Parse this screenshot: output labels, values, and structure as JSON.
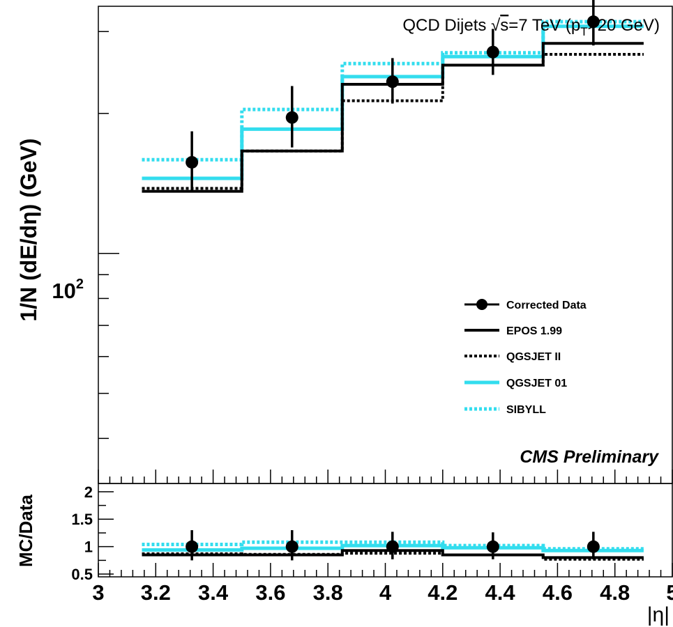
{
  "chart_data": [
    {
      "type": "step",
      "panel": "main",
      "title": "QCD Dijets √s=7 TeV (p_T>20 GeV)",
      "title_parts": {
        "prefix": "QCD Dijets ",
        "root": "√",
        "s": "s",
        "mid": "=7 TeV (p",
        "sub": "T",
        "suffix": ">20 GeV)"
      },
      "annotation": "CMS Preliminary",
      "xlabel": "|η|",
      "ylabel": "1/N (dE/dη) (GeV)",
      "yscale": "log",
      "xlim": [
        3.0,
        5.0
      ],
      "ylim": [
        32,
        340
      ],
      "y_tick_labels": [
        {
          "value": 100,
          "base": "10",
          "exp": "2"
        }
      ],
      "bin_edges": [
        3.152,
        3.5,
        3.85,
        4.2,
        4.55,
        4.9
      ],
      "series": [
        {
          "name": "Corrected Data",
          "kind": "points",
          "color": "#000000",
          "x": [
            3.326,
            3.675,
            4.025,
            4.375,
            4.725
          ],
          "y": [
            157,
            196,
            234,
            271,
            315
          ],
          "err_low": [
            21,
            27,
            24,
            29,
            35
          ],
          "err_high": [
            26,
            33,
            29,
            33,
            40
          ]
        },
        {
          "name": "EPOS 1.99",
          "kind": "step",
          "style": "solid",
          "color": "#000000",
          "values": [
            136,
            166,
            231,
            254,
            283
          ]
        },
        {
          "name": "QGSJET II",
          "kind": "step",
          "style": "dotted",
          "color": "#000000",
          "values": [
            138,
            166,
            213,
            254,
            268
          ]
        },
        {
          "name": "QGSJET 01",
          "kind": "step",
          "style": "solid",
          "color": "#33ddee",
          "values": [
            145,
            185,
            240,
            265,
            308
          ]
        },
        {
          "name": "SIBYLL",
          "kind": "step",
          "style": "dotted",
          "color": "#33ddee",
          "values": [
            159,
            204,
            256,
            270,
            315
          ]
        }
      ],
      "legend_position": "right-center"
    },
    {
      "type": "step",
      "panel": "ratio",
      "xlabel": "|η|",
      "ylabel": "MC/Data",
      "xlim": [
        3.0,
        5.0
      ],
      "ylim": [
        0.45,
        2.15
      ],
      "x_tick_labels": [
        "3",
        "3.2",
        "3.4",
        "3.6",
        "3.8",
        "4",
        "4.2",
        "4.4",
        "4.6",
        "4.8",
        "5"
      ],
      "y_tick_labels": [
        "0.5",
        "1",
        "1.5",
        "2"
      ],
      "bin_edges": [
        3.152,
        3.5,
        3.85,
        4.2,
        4.55,
        4.9
      ],
      "series": [
        {
          "name": "Corrected Data",
          "kind": "points",
          "color": "#000000",
          "x": [
            3.326,
            3.675,
            4.025,
            4.375,
            4.725
          ],
          "y": [
            1,
            1,
            1,
            1,
            1
          ],
          "err_low": [
            0.25,
            0.25,
            0.23,
            0.23,
            0.23
          ],
          "err_high": [
            0.3,
            0.3,
            0.27,
            0.26,
            0.27
          ]
        },
        {
          "name": "EPOS 1.99",
          "kind": "step",
          "style": "solid",
          "color": "#000000",
          "values": [
            0.85,
            0.85,
            0.93,
            0.85,
            0.8
          ]
        },
        {
          "name": "QGSJET II",
          "kind": "step",
          "style": "dotted",
          "color": "#000000",
          "values": [
            0.87,
            0.86,
            0.88,
            0.85,
            0.77
          ]
        },
        {
          "name": "QGSJET 01",
          "kind": "step",
          "style": "solid",
          "color": "#33ddee",
          "values": [
            0.94,
            0.97,
            1.02,
            0.98,
            0.93
          ]
        },
        {
          "name": "SIBYLL",
          "kind": "step",
          "style": "dotted",
          "color": "#33ddee",
          "values": [
            1.04,
            1.08,
            1.08,
            1.02,
            0.96
          ]
        }
      ]
    }
  ]
}
